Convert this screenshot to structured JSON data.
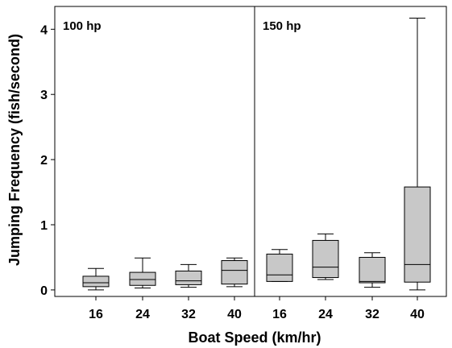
{
  "chart_data": {
    "type": "boxplot",
    "xlabel": "Boat Speed (km/hr)",
    "ylabel": "Jumping Frequency (fish/second)",
    "ylim": [
      -0.1,
      4.35
    ],
    "yticks": [
      0,
      1,
      2,
      3,
      4
    ],
    "panels": [
      {
        "label": "100 hp",
        "categories": [
          "16",
          "24",
          "32",
          "40"
        ],
        "boxes": [
          {
            "min": 0.0,
            "q1": 0.05,
            "median": 0.11,
            "q3": 0.21,
            "max": 0.33
          },
          {
            "min": 0.03,
            "q1": 0.07,
            "median": 0.16,
            "q3": 0.27,
            "max": 0.49
          },
          {
            "min": 0.04,
            "q1": 0.08,
            "median": 0.14,
            "q3": 0.29,
            "max": 0.39
          },
          {
            "min": 0.05,
            "q1": 0.09,
            "median": 0.3,
            "q3": 0.45,
            "max": 0.49
          }
        ]
      },
      {
        "label": "150 hp",
        "categories": [
          "16",
          "24",
          "32",
          "40"
        ],
        "boxes": [
          {
            "min": 0.13,
            "q1": 0.13,
            "median": 0.23,
            "q3": 0.55,
            "max": 0.62
          },
          {
            "min": 0.16,
            "q1": 0.19,
            "median": 0.35,
            "q3": 0.76,
            "max": 0.86
          },
          {
            "min": 0.04,
            "q1": 0.11,
            "median": 0.13,
            "q3": 0.5,
            "max": 0.57
          },
          {
            "min": 0.0,
            "q1": 0.12,
            "median": 0.39,
            "q3": 1.58,
            "max": 4.17
          }
        ]
      }
    ],
    "colors": {
      "box_fill": "#c8c8c8",
      "stroke": "#000000"
    }
  }
}
